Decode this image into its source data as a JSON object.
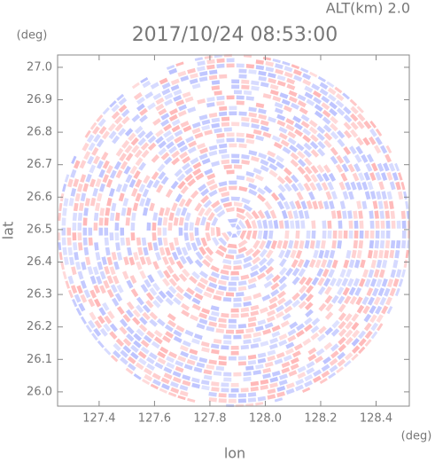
{
  "chart_data": {
    "type": "radar-ppi",
    "title": "2017/10/24 08:53:00",
    "subtitle": "ALT(km) 2.0",
    "xlabel": "lon",
    "ylabel": "lat",
    "x_unit": "(deg)",
    "y_unit": "(deg)",
    "xlim": [
      127.25,
      128.52
    ],
    "ylim": [
      25.956,
      27.038
    ],
    "xticks": [
      127.4,
      127.6,
      127.8,
      {
        "value": 128.0,
        "label": "128.0"
      },
      128.2,
      128.4
    ],
    "yticks": [
      {
        "value": 26.0,
        "label": "26.0"
      },
      26.1,
      26.2,
      26.3,
      26.4,
      26.5,
      26.6,
      26.7,
      26.8,
      26.9,
      {
        "value": 27.0,
        "label": "27.0"
      }
    ],
    "colors": [
      "#ffb3b3",
      "#b8bfff"
    ]
  }
}
